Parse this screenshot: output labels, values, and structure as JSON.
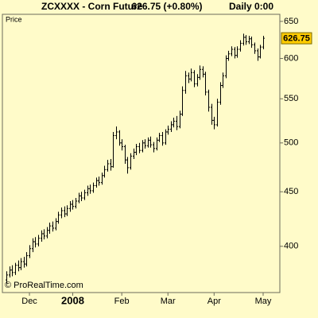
{
  "chart_data": {
    "type": "ohlc",
    "title": "ZCXXXX - Corn Future",
    "quote": "626.75 (+0.80%)",
    "period": "Daily",
    "time": "0:00",
    "panel_label": "Price",
    "watermark": "© ProRealTime.com",
    "last_price": 626.75,
    "color": "#000000",
    "log_scale": true,
    "grid": false,
    "ylim": [
      362,
      660
    ],
    "yticks": [
      400,
      450,
      500,
      550,
      600,
      650
    ],
    "categories": [
      null,
      null,
      null,
      null,
      null,
      null,
      null,
      null,
      "Dec",
      null,
      null,
      null,
      null,
      null,
      null,
      null,
      null,
      null,
      null,
      null,
      null,
      null,
      null,
      "2008",
      null,
      null,
      null,
      null,
      null,
      null,
      null,
      null,
      null,
      null,
      null,
      null,
      null,
      null,
      null,
      null,
      "Feb",
      null,
      null,
      null,
      null,
      null,
      null,
      null,
      null,
      null,
      null,
      null,
      null,
      null,
      null,
      null,
      "Mar",
      null,
      null,
      null,
      null,
      null,
      null,
      null,
      null,
      null,
      null,
      null,
      null,
      null,
      null,
      null,
      "Apr",
      null,
      null,
      null,
      null,
      null,
      null,
      null,
      null,
      null,
      null,
      null,
      null,
      null,
      null,
      null,
      null,
      "May"
    ],
    "open": [
      372,
      376,
      380,
      378,
      384,
      382,
      387,
      385,
      392,
      398,
      404,
      402,
      407,
      411,
      409,
      414,
      418,
      416,
      422,
      428,
      432,
      429,
      434,
      438,
      436,
      441,
      446,
      444,
      449,
      453,
      451,
      456,
      461,
      459,
      466,
      472,
      478,
      475,
      508,
      512,
      500,
      496,
      482,
      474,
      486,
      490,
      496,
      492,
      500,
      497,
      503,
      498,
      494,
      503,
      508,
      500,
      512,
      515,
      520,
      524,
      518,
      532,
      560,
      578,
      574,
      582,
      568,
      576,
      586,
      580,
      558,
      540,
      525,
      520,
      546,
      566,
      578,
      600,
      606,
      612,
      604,
      612,
      620,
      628,
      622,
      626,
      618,
      610,
      602,
      615
    ],
    "high": [
      379,
      383,
      384,
      386,
      388,
      390,
      391,
      395,
      401,
      407,
      408,
      410,
      414,
      415,
      417,
      421,
      422,
      425,
      431,
      435,
      436,
      437,
      441,
      442,
      444,
      449,
      450,
      452,
      456,
      457,
      459,
      464,
      465,
      469,
      476,
      482,
      483,
      512,
      518,
      514,
      504,
      498,
      485,
      489,
      494,
      499,
      500,
      503,
      504,
      506,
      507,
      501,
      506,
      511,
      512,
      515,
      519,
      524,
      528,
      530,
      536,
      565,
      584,
      582,
      587,
      585,
      580,
      591,
      590,
      583,
      561,
      544,
      529,
      550,
      570,
      582,
      604,
      610,
      616,
      615,
      616,
      624,
      633,
      631,
      630,
      629,
      621,
      613,
      618,
      630
    ],
    "low": [
      369,
      374,
      375,
      376,
      379,
      380,
      382,
      383,
      390,
      395,
      399,
      400,
      404,
      406,
      407,
      411,
      413,
      414,
      420,
      425,
      426,
      427,
      431,
      433,
      434,
      439,
      441,
      442,
      446,
      448,
      449,
      454,
      456,
      457,
      464,
      470,
      471,
      474,
      504,
      497,
      492,
      478,
      468,
      472,
      483,
      487,
      489,
      490,
      494,
      495,
      495,
      490,
      492,
      501,
      497,
      498,
      509,
      512,
      517,
      514,
      516,
      530,
      556,
      569,
      571,
      564,
      565,
      573,
      576,
      554,
      535,
      520,
      515,
      518,
      543,
      563,
      575,
      597,
      603,
      600,
      601,
      609,
      617,
      618,
      619,
      614,
      606,
      597,
      600,
      612
    ],
    "close": [
      376,
      380,
      378,
      384,
      382,
      387,
      385,
      392,
      398,
      404,
      402,
      407,
      411,
      409,
      414,
      418,
      416,
      422,
      428,
      432,
      429,
      434,
      438,
      436,
      441,
      446,
      444,
      449,
      453,
      451,
      456,
      461,
      459,
      466,
      472,
      478,
      475,
      508,
      512,
      500,
      496,
      482,
      474,
      486,
      490,
      496,
      492,
      500,
      497,
      503,
      498,
      494,
      503,
      508,
      500,
      512,
      515,
      520,
      524,
      518,
      532,
      560,
      578,
      574,
      582,
      568,
      576,
      586,
      580,
      558,
      540,
      525,
      520,
      546,
      566,
      578,
      600,
      606,
      612,
      604,
      612,
      620,
      628,
      622,
      626,
      618,
      610,
      602,
      615,
      626.75
    ]
  }
}
